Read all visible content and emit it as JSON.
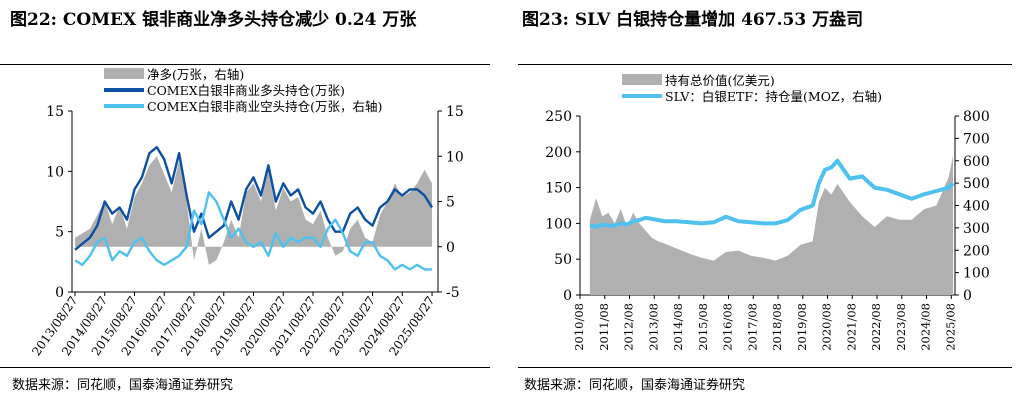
{
  "charts": [
    {
      "title": "图22:  COMEX 银非商业净多头持仓减少  0.24 万张",
      "source": "数据来源：同花顺，国泰海通证券研究",
      "chart_data": {
        "type": "area+line",
        "legend": [
          "净多(万张，右轴)",
          "COMEX白银非商业多头持仓(万张)",
          "COMEX白银非商业空头持仓(万张，右轴)"
        ],
        "legend_placement": "top",
        "colors": {
          "net": "#b0b0b0",
          "long": "#0d4fa0",
          "short": "#4fc1ee"
        },
        "x_ticks": [
          "2013/08/27",
          "2014/08/27",
          "2015/08/27",
          "2016/08/27",
          "2017/08/27",
          "2018/08/27",
          "2019/08/27",
          "2020/08/27",
          "2021/08/27",
          "2022/08/27",
          "2023/08/27",
          "2024/08/27",
          "2025/08/27"
        ],
        "left_axis": {
          "min": 0,
          "max": 15,
          "ticks": [
            0,
            5,
            10,
            15
          ]
        },
        "right_axis": {
          "min": -5,
          "max": 15,
          "ticks": [
            -5,
            0,
            5,
            10,
            15
          ]
        },
        "x": [
          2013.65,
          2013.9,
          2014.15,
          2014.4,
          2014.65,
          2014.9,
          2015.15,
          2015.4,
          2015.65,
          2015.9,
          2016.15,
          2016.4,
          2016.65,
          2016.9,
          2017.15,
          2017.4,
          2017.65,
          2017.9,
          2018.15,
          2018.4,
          2018.65,
          2018.9,
          2019.15,
          2019.4,
          2019.65,
          2019.9,
          2020.15,
          2020.4,
          2020.65,
          2020.9,
          2021.15,
          2021.4,
          2021.65,
          2021.9,
          2022.15,
          2022.4,
          2022.65,
          2022.9,
          2023.15,
          2023.4,
          2023.65,
          2023.9,
          2024.15,
          2024.4,
          2024.65,
          2024.9,
          2025.15,
          2025.4,
          2025.65
        ],
        "series": [
          {
            "name": "净多(万张，右轴)",
            "axis": "right",
            "values": [
              1.0,
              1.5,
              2.0,
              3.5,
              5.0,
              2.5,
              4.5,
              2.0,
              5.5,
              7.0,
              9.0,
              10.0,
              8.0,
              6.0,
              9.5,
              5.0,
              -1.5,
              2.0,
              -2.0,
              -1.5,
              0.5,
              3.0,
              1.0,
              6.0,
              7.0,
              5.0,
              8.5,
              4.0,
              6.5,
              5.0,
              5.5,
              3.0,
              2.5,
              4.0,
              1.0,
              -1.0,
              -0.5,
              2.0,
              3.0,
              1.0,
              0.5,
              3.5,
              5.0,
              7.0,
              5.5,
              6.0,
              7.0,
              8.5,
              7.0
            ]
          },
          {
            "name": "COMEX白银非商业多头持仓(万张)",
            "axis": "left",
            "values": [
              3.5,
              4.0,
              4.5,
              5.5,
              7.5,
              6.5,
              7.0,
              6.0,
              8.5,
              9.5,
              11.5,
              12.0,
              11.0,
              9.0,
              11.5,
              8.0,
              5.0,
              6.5,
              4.5,
              5.0,
              5.5,
              7.5,
              6.0,
              8.5,
              9.5,
              8.0,
              10.5,
              7.5,
              9.0,
              8.0,
              8.5,
              7.0,
              6.5,
              7.5,
              6.0,
              5.0,
              5.0,
              6.5,
              7.0,
              6.0,
              5.5,
              7.0,
              7.5,
              8.5,
              8.0,
              8.5,
              8.5,
              8.0,
              7.0
            ]
          },
          {
            "name": "COMEX白银非商业空头持仓(万张，右轴)",
            "axis": "right",
            "values": [
              -1.5,
              -2.0,
              -1.0,
              0.5,
              1.0,
              -1.5,
              -0.5,
              -1.0,
              0.5,
              1.0,
              -0.5,
              -1.5,
              -2.0,
              -1.5,
              -1.0,
              0.0,
              4.0,
              2.5,
              6.0,
              5.0,
              3.0,
              1.0,
              2.0,
              0.5,
              0.0,
              0.5,
              -1.0,
              1.5,
              0.0,
              1.0,
              0.5,
              1.0,
              1.0,
              0.0,
              2.0,
              3.0,
              1.5,
              -0.5,
              -1.0,
              0.5,
              0.5,
              -1.0,
              -1.5,
              -2.5,
              -2.0,
              -2.5,
              -2.0,
              -2.5,
              -2.5
            ]
          }
        ]
      }
    },
    {
      "title": "图23:  SLV 白银持仓量增加 467.53 万盎司",
      "source": "数据来源：同花顺，国泰海通证券研究",
      "chart_data": {
        "type": "area+line",
        "legend": [
          "持有总价值(亿美元)",
          "SLV：白银ETF：持仓量(MOZ，右轴)"
        ],
        "legend_placement": "top",
        "colors": {
          "value": "#b0b0b0",
          "holdings": "#4fc1ee"
        },
        "x_ticks": [
          "2010/08",
          "2011/08",
          "2012/08",
          "2013/08",
          "2014/08",
          "2015/08",
          "2016/08",
          "2017/08",
          "2018/08",
          "2019/08",
          "2020/08",
          "2021/08",
          "2022/08",
          "2023/08",
          "2024/08",
          "2025/08"
        ],
        "left_axis": {
          "min": 0,
          "max": 250,
          "ticks": [
            0,
            50,
            100,
            150,
            200,
            250
          ]
        },
        "right_axis": {
          "min": 0,
          "max": 800,
          "ticks": [
            0,
            100,
            200,
            300,
            400,
            500,
            600,
            700,
            800
          ]
        },
        "x": [
          2011.0,
          2011.25,
          2011.5,
          2011.75,
          2012.0,
          2012.25,
          2012.5,
          2012.75,
          2013.0,
          2013.25,
          2013.5,
          2013.75,
          2014.0,
          2014.5,
          2015.0,
          2015.5,
          2016.0,
          2016.5,
          2017.0,
          2017.5,
          2018.0,
          2018.5,
          2019.0,
          2019.5,
          2020.0,
          2020.25,
          2020.5,
          2020.75,
          2021.0,
          2021.5,
          2022.0,
          2022.5,
          2023.0,
          2023.5,
          2024.0,
          2024.5,
          2025.0,
          2025.5,
          2025.67
        ],
        "series": [
          {
            "name": "持有总价值(亿美元)",
            "axis": "left",
            "values": [
              105,
              135,
              110,
              115,
              100,
              120,
              95,
              115,
              100,
              90,
              80,
              75,
              72,
              65,
              58,
              52,
              48,
              60,
              62,
              55,
              52,
              48,
              55,
              70,
              75,
              130,
              150,
              140,
              155,
              130,
              110,
              95,
              110,
              105,
              105,
              120,
              125,
              165,
              195
            ]
          },
          {
            "name": "SLV：白银ETF：持仓量(MOZ，右轴)",
            "axis": "right",
            "values": [
              310,
              305,
              315,
              310,
              310,
              320,
              315,
              330,
              335,
              345,
              340,
              335,
              330,
              330,
              325,
              320,
              325,
              350,
              330,
              325,
              320,
              320,
              335,
              380,
              400,
              500,
              560,
              570,
              600,
              520,
              530,
              480,
              470,
              450,
              430,
              450,
              465,
              480,
              500
            ]
          }
        ]
      }
    }
  ]
}
